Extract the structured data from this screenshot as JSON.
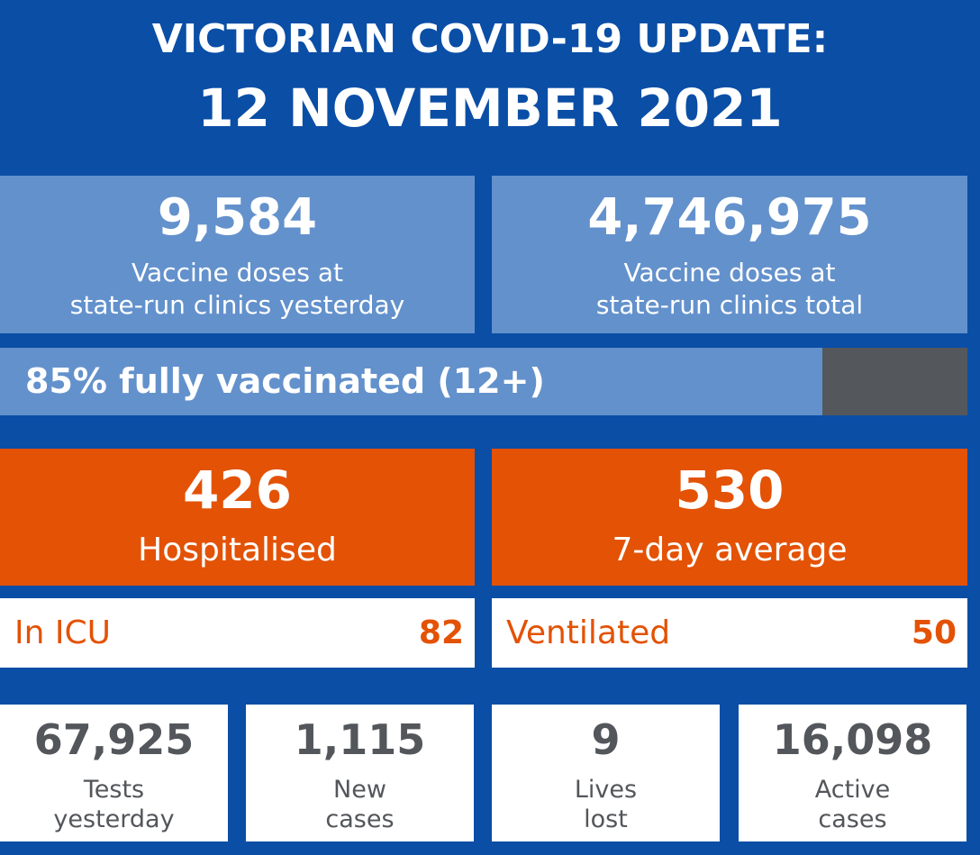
{
  "header": {
    "title_line1": "VICTORIAN COVID-19 UPDATE:",
    "title_line2": "12 NOVEMBER 2021"
  },
  "vaccines": {
    "yesterday": {
      "value": "9,584",
      "label_line1": "Vaccine doses at",
      "label_line2": "state-run clinics yesterday"
    },
    "total": {
      "value": "4,746,975",
      "label_line1": "Vaccine doses at",
      "label_line2": "state-run clinics total"
    }
  },
  "progress": {
    "label": "85% fully vaccinated (12+)",
    "percent": 85
  },
  "hospital": {
    "hospitalised": {
      "value": "426",
      "label": "Hospitalised"
    },
    "average": {
      "value": "530",
      "label": "7-day average"
    },
    "icu": {
      "label": "In ICU",
      "value": "82"
    },
    "ventilated": {
      "label": "Ventilated",
      "value": "50"
    }
  },
  "stats": [
    {
      "value": "67,925",
      "label_line1": "Tests",
      "label_line2": "yesterday"
    },
    {
      "value": "1,115",
      "label_line1": "New",
      "label_line2": "cases"
    },
    {
      "value": "9",
      "label_line1": "Lives",
      "label_line2": "lost"
    },
    {
      "value": "16,098",
      "label_line1": "Active",
      "label_line2": "cases"
    }
  ],
  "colors": {
    "background": "#0a4ea6",
    "vaccine_panel": "#6391cc",
    "progress_remaining": "#54585d",
    "hospital_orange": "#e35205",
    "stat_text": "#53565a"
  }
}
